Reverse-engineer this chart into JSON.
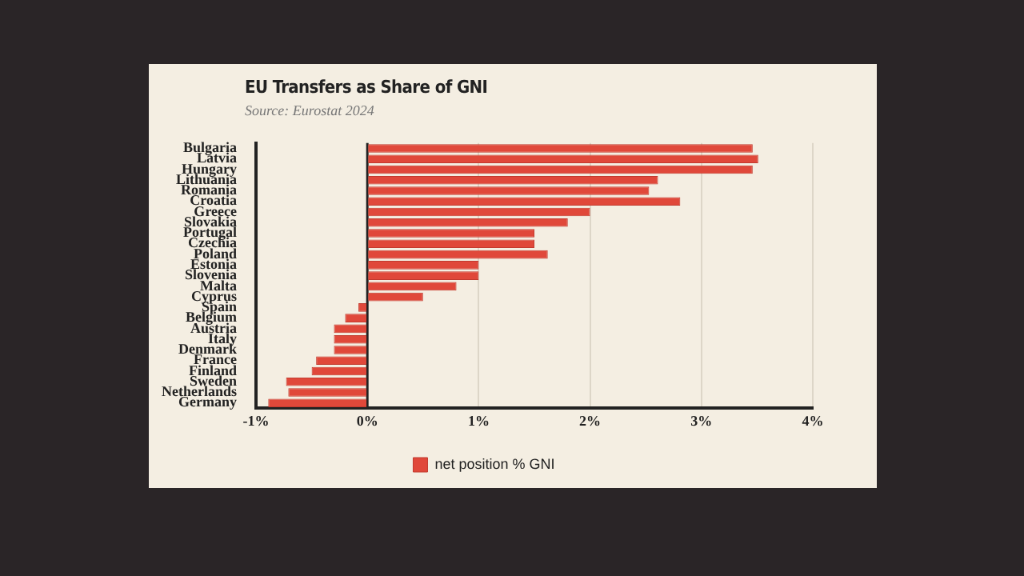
{
  "chart_data": {
    "type": "bar",
    "orientation": "horizontal",
    "title": "EU Transfers as Share of GNI",
    "subtitle": "Source: Eurostat 2024",
    "categories": [
      "Bulgaria",
      "Latvia",
      "Hungary",
      "Lithuania",
      "Romania",
      "Croatia",
      "Greece",
      "Slovakia",
      "Portugal",
      "Czechia",
      "Poland",
      "Estonia",
      "Slovenia",
      "Malta",
      "Cyprus",
      "Spain",
      "Belgium",
      "Austria",
      "Italy",
      "Denmark",
      "France",
      "Finland",
      "Sweden",
      "Netherlands",
      "Germany"
    ],
    "series": [
      {
        "name": "net position % GNI",
        "color": "#e0483a",
        "values": [
          3.46,
          3.51,
          3.46,
          2.61,
          2.53,
          2.81,
          2.0,
          1.8,
          1.5,
          1.5,
          1.62,
          1.0,
          1.0,
          0.8,
          0.5,
          -0.08,
          -0.2,
          -0.3,
          -0.3,
          -0.3,
          -0.46,
          -0.5,
          -0.73,
          -0.71,
          -0.89
        ]
      }
    ],
    "xlim": [
      -1,
      4
    ],
    "xticks": [
      {
        "value": -1,
        "label": "-1%"
      },
      {
        "value": 0,
        "label": "0%"
      },
      {
        "value": 1,
        "label": "1%"
      },
      {
        "value": 2,
        "label": "2%"
      },
      {
        "value": 3,
        "label": "3%"
      },
      {
        "value": 4,
        "label": "4%"
      }
    ],
    "ref_lines": [
      {
        "axis": "x",
        "value": 0,
        "color": "#222222"
      }
    ],
    "grid": "x",
    "legend": "bottom"
  }
}
